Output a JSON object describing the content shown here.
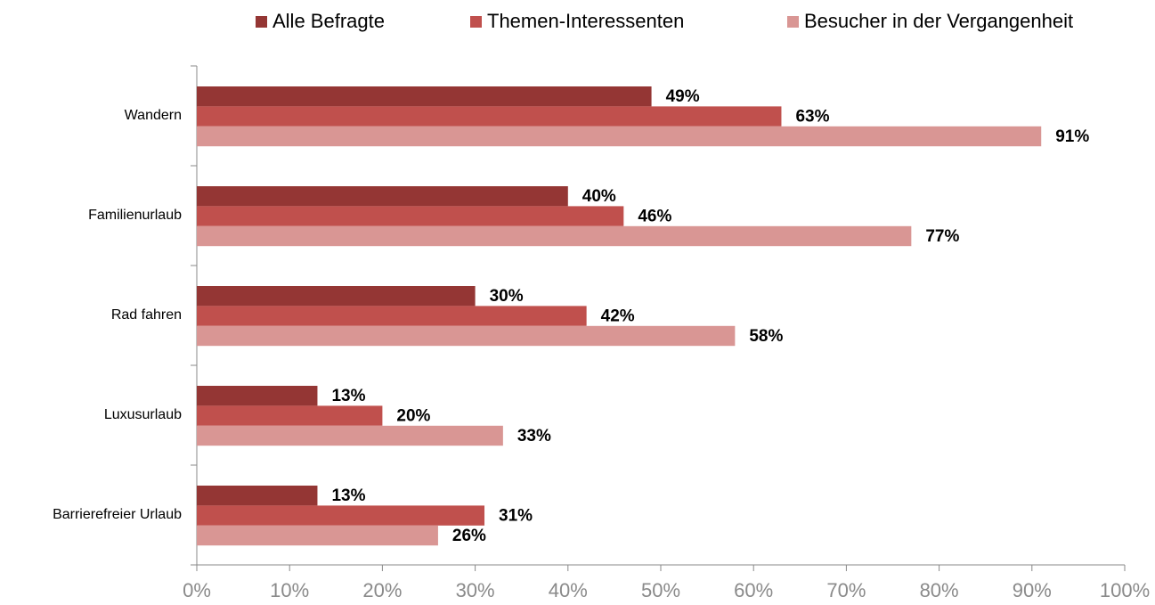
{
  "chart_data": {
    "type": "hbar",
    "categories": [
      "Wandern",
      "Familienurlaub",
      "Rad fahren",
      "Luxusurlaub",
      "Barrierefreier Urlaub"
    ],
    "series": [
      {
        "name": "Alle Befragte",
        "color": "#943634",
        "values": [
          49,
          40,
          30,
          13,
          13
        ],
        "value_labels": [
          "49%",
          "40%",
          "30%",
          "13%",
          "13%"
        ]
      },
      {
        "name": "Themen-Interessenten",
        "color": "#c0504d",
        "values": [
          63,
          46,
          42,
          20,
          31
        ],
        "value_labels": [
          "63%",
          "46%",
          "42%",
          "20%",
          "31%"
        ]
      },
      {
        "name": "Besucher in der Vergangenheit",
        "color": "#d99694",
        "values": [
          91,
          77,
          58,
          33,
          26
        ],
        "value_labels": [
          "91%",
          "77%",
          "58%",
          "33%",
          "26%"
        ]
      }
    ],
    "xlim": [
      0,
      100
    ],
    "xticks": [
      {
        "value": 0,
        "label": "0%"
      },
      {
        "value": 10,
        "label": "10%"
      },
      {
        "value": 20,
        "label": "20%"
      },
      {
        "value": 30,
        "label": "30%"
      },
      {
        "value": 40,
        "label": "40%"
      },
      {
        "value": 50,
        "label": "50%"
      },
      {
        "value": 60,
        "label": "60%"
      },
      {
        "value": 70,
        "label": "70%"
      },
      {
        "value": 80,
        "label": "80%"
      },
      {
        "value": 90,
        "label": "90%"
      },
      {
        "value": 100,
        "label": "100%"
      }
    ],
    "legend": "top"
  }
}
